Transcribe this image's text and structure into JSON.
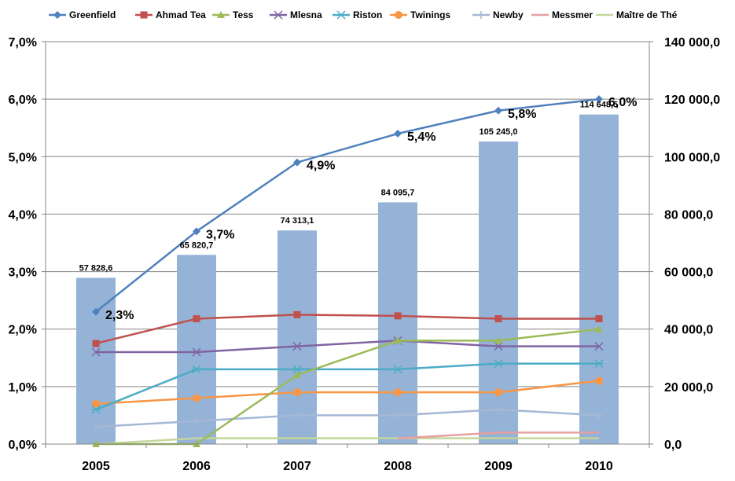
{
  "chart_data": {
    "type": "bar",
    "categories": [
      "2005",
      "2006",
      "2007",
      "2008",
      "2009",
      "2010"
    ],
    "left_axis": {
      "ticks": [
        "0,0%",
        "1,0%",
        "2,0%",
        "3,0%",
        "4,0%",
        "5,0%",
        "6,0%",
        "7,0%"
      ],
      "ylim": [
        0,
        7
      ]
    },
    "right_axis": {
      "ticks": [
        "0,0",
        "20 000,0",
        "40 000,0",
        "60 000,0",
        "80 000,0",
        "100 000,0",
        "120 000,0",
        "140 000,0"
      ],
      "ylim": [
        0,
        140000
      ]
    },
    "bars": {
      "axis": "right",
      "color": "#95B3D7",
      "values": [
        57828.6,
        65820.7,
        74313.1,
        84095.7,
        105245.0,
        114648.5
      ],
      "labels": [
        "57 828,6",
        "65 820,7",
        "74 313,1",
        "84 095,7",
        "105 245,0",
        "114 648,5"
      ]
    },
    "series": [
      {
        "name": "Greenfield",
        "type": "line",
        "axis": "left",
        "color": "#4F81BD",
        "marker": "diamond",
        "values": [
          2.3,
          3.7,
          4.9,
          5.4,
          5.8,
          6.0
        ],
        "labels": [
          "2,3%",
          "3,7%",
          "4,9%",
          "5,4%",
          "5,8%",
          "6,0%"
        ]
      },
      {
        "name": "Ahmad Tea",
        "type": "line",
        "axis": "left",
        "color": "#C0504D",
        "marker": "square",
        "values": [
          1.75,
          2.18,
          2.25,
          2.23,
          2.18,
          2.18
        ]
      },
      {
        "name": "Tess",
        "type": "line",
        "axis": "left",
        "color": "#9BBB59",
        "marker": "triangle",
        "values": [
          0.0,
          0.0,
          1.2,
          1.8,
          1.8,
          2.0
        ]
      },
      {
        "name": "Mlesna",
        "type": "line",
        "axis": "left",
        "color": "#8064A2",
        "marker": "x",
        "values": [
          1.6,
          1.6,
          1.7,
          1.8,
          1.7,
          1.7
        ]
      },
      {
        "name": "Riston",
        "type": "line",
        "axis": "left",
        "color": "#4BACC6",
        "marker": "star",
        "values": [
          0.6,
          1.3,
          1.3,
          1.3,
          1.4,
          1.4
        ]
      },
      {
        "name": "Twinings",
        "type": "line",
        "axis": "left",
        "color": "#F79646",
        "marker": "circle",
        "values": [
          0.7,
          0.8,
          0.9,
          0.9,
          0.9,
          1.1
        ]
      },
      {
        "name": "Newby",
        "type": "line",
        "axis": "left",
        "color": "#A5B8D6",
        "marker": "plus",
        "values": [
          0.3,
          0.4,
          0.5,
          0.5,
          0.6,
          0.5
        ]
      },
      {
        "name": "Messmer",
        "type": "line",
        "axis": "left",
        "color": "#E6A0A0",
        "marker": "none",
        "values": [
          null,
          null,
          null,
          0.1,
          0.2,
          0.2
        ]
      },
      {
        "name": "Maître de Thé",
        "type": "line",
        "axis": "left",
        "color": "#C3D69B",
        "marker": "none",
        "values": [
          0.0,
          0.1,
          0.1,
          0.1,
          0.1,
          0.1
        ]
      }
    ],
    "grid": true,
    "legend": "top"
  }
}
